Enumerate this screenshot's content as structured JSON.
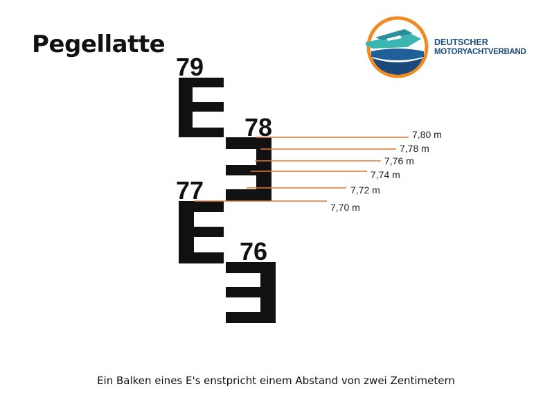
{
  "title": "Pegellatte",
  "brand": {
    "line1": "DEUTSCHER",
    "line2": "MOTORYACHTVERBAND"
  },
  "colors": {
    "bar": "#111111",
    "marker": "#e8782a",
    "brand_blue": "#1a4a7a",
    "brand_orange": "#f08a24"
  },
  "staff_numbers": [
    "79",
    "78",
    "77",
    "76"
  ],
  "readings": [
    {
      "value": 7.8,
      "label": "7,80 m"
    },
    {
      "value": 7.78,
      "label": "7,78 m"
    },
    {
      "value": 7.76,
      "label": "7,76 m"
    },
    {
      "value": 7.74,
      "label": "7,74 m"
    },
    {
      "value": 7.72,
      "label": "7,72 m"
    },
    {
      "value": 7.7,
      "label": "7,70 m"
    }
  ],
  "caption": "Ein Balken eines E's enstpricht einem Abstand von zwei Zentimetern"
}
